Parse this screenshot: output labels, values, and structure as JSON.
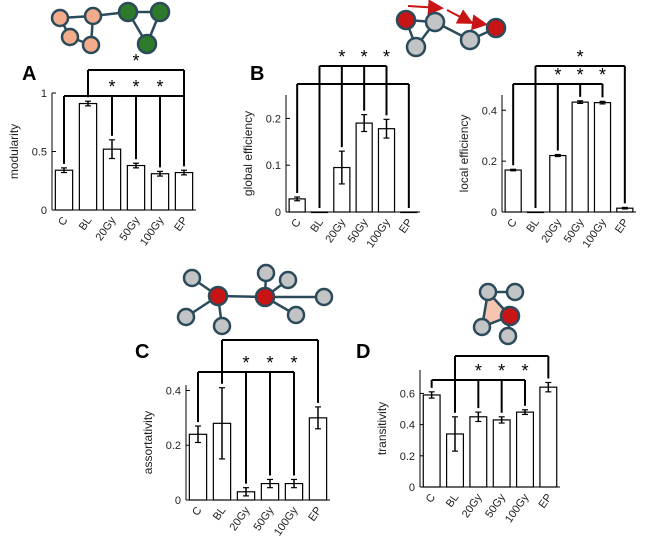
{
  "colors": {
    "bar_fill": "#ffffff",
    "bar_stroke": "#000000",
    "node_salmon": "#f2ab8b",
    "node_green": "#2d7a2a",
    "node_red": "#c81414",
    "node_gray": "#c2c4c6",
    "node_stroke": "#2b4a5a",
    "triangle_fill": "#f5c5b0",
    "arrow_red": "#c81414"
  },
  "star_symbol": "*",
  "categories": [
    "C",
    "BL",
    "20Gy",
    "50Gy",
    "100Gy",
    "EP"
  ],
  "chart_data": [
    {
      "panel": "A",
      "type": "bar",
      "ylabel": "modularity",
      "categories": [
        "C",
        "BL",
        "20Gy",
        "50Gy",
        "100Gy",
        "EP"
      ],
      "values": [
        0.34,
        0.91,
        0.52,
        0.38,
        0.31,
        0.32
      ],
      "errors": [
        0.02,
        0.02,
        0.08,
        0.02,
        0.02,
        0.02
      ],
      "ylim": [
        0,
        1
      ],
      "yticks": [
        "0",
        "0.5",
        "1"
      ],
      "ytick_values": [
        0,
        0.5,
        1
      ],
      "significance": [
        {
          "from": "BL",
          "to": [
            "EP"
          ],
          "label": "*"
        },
        {
          "from": "C",
          "to": [
            "20Gy",
            "50Gy",
            "100Gy",
            "EP"
          ],
          "label": "*"
        }
      ]
    },
    {
      "panel": "B",
      "type": "bar",
      "ylabel": "global efficiency",
      "categories": [
        "C",
        "BL",
        "20Gy",
        "50Gy",
        "100Gy",
        "EP"
      ],
      "values": [
        0.028,
        0.0,
        0.095,
        0.19,
        0.178,
        0.0
      ],
      "errors": [
        0.004,
        0.0,
        0.035,
        0.018,
        0.02,
        0.0
      ],
      "ylim": [
        0,
        0.25
      ],
      "yticks": [
        "0",
        "0.1",
        "0.2"
      ],
      "ytick_values": [
        0,
        0.1,
        0.2
      ],
      "significance": [
        {
          "from": "BL",
          "to": [
            "20Gy",
            "50Gy",
            "100Gy"
          ],
          "label": "*"
        },
        {
          "from": "C",
          "to": [
            "EP"
          ],
          "label": ""
        }
      ]
    },
    {
      "panel": "",
      "type": "bar",
      "ylabel": "local efficiency",
      "categories": [
        "C",
        "BL",
        "20Gy",
        "50Gy",
        "100Gy",
        "EP"
      ],
      "values": [
        0.165,
        0.0,
        0.222,
        0.432,
        0.43,
        0.015
      ],
      "errors": [
        0.003,
        0.0,
        0.004,
        0.005,
        0.005,
        0.003
      ],
      "ylim": [
        0,
        0.46
      ],
      "yticks": [
        "0",
        "0.2",
        "0.4"
      ],
      "ytick_values": [
        0,
        0.2,
        0.4
      ],
      "significance": [
        {
          "from": "BL",
          "to": [
            "EP"
          ],
          "label": "*"
        },
        {
          "from": "C",
          "to": [
            "20Gy",
            "50Gy",
            "100Gy"
          ],
          "label": "*"
        }
      ]
    },
    {
      "panel": "C",
      "type": "bar",
      "ylabel": "assortativity",
      "categories": [
        "C",
        "BL",
        "20Gy",
        "50Gy",
        "100Gy",
        "EP"
      ],
      "values": [
        0.24,
        0.28,
        0.03,
        0.06,
        0.06,
        0.3
      ],
      "errors": [
        0.03,
        0.13,
        0.015,
        0.015,
        0.015,
        0.04
      ],
      "ylim": [
        0,
        0.42
      ],
      "yticks": [
        "0",
        "0.2",
        "0.4"
      ],
      "ytick_values": [
        0,
        0.2,
        0.4
      ],
      "significance": [
        {
          "from": "BL",
          "to": [
            "EP"
          ],
          "label": ""
        },
        {
          "from": "C",
          "to": [
            "20Gy",
            "50Gy",
            "100Gy"
          ],
          "label": "*"
        }
      ]
    },
    {
      "panel": "D",
      "type": "bar",
      "ylabel": "transitivity",
      "categories": [
        "C",
        "BL",
        "20Gy",
        "50Gy",
        "100Gy",
        "EP"
      ],
      "values": [
        0.59,
        0.34,
        0.45,
        0.43,
        0.48,
        0.64
      ],
      "errors": [
        0.02,
        0.11,
        0.03,
        0.02,
        0.015,
        0.03
      ],
      "ylim": [
        0,
        0.75
      ],
      "yticks": [
        "0",
        "0.2",
        "0.4",
        "0.6"
      ],
      "ytick_values": [
        0,
        0.2,
        0.4,
        0.6
      ],
      "significance": [
        {
          "from": "BL",
          "to": [
            "EP"
          ],
          "label": ""
        },
        {
          "from": "C",
          "to": [
            "20Gy",
            "50Gy",
            "100Gy"
          ],
          "label": "*"
        }
      ]
    }
  ]
}
